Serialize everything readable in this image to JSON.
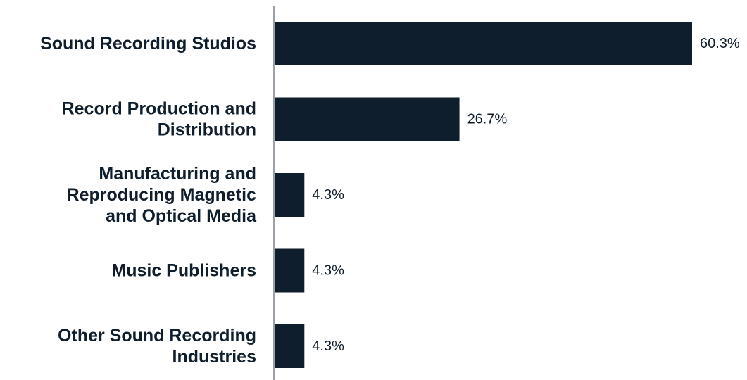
{
  "chart_data": {
    "type": "bar",
    "orientation": "horizontal",
    "categories": [
      "Sound Recording Studios",
      "Record Production and Distribution",
      "Manufacturing and Reproducing Magnetic and Optical Media",
      "Music Publishers",
      "Other Sound Recording Industries"
    ],
    "category_label_lines": [
      [
        "Sound Recording Studios"
      ],
      [
        "Record Production and",
        "Distribution"
      ],
      [
        "Manufacturing and",
        "Reproducing Magnetic",
        "and Optical Media"
      ],
      [
        "Music Publishers"
      ],
      [
        "Other Sound Recording",
        "Industries"
      ]
    ],
    "values": [
      60.3,
      26.7,
      4.3,
      4.3,
      4.3
    ],
    "value_labels": [
      "60.3%",
      "26.7%",
      "4.3%",
      "4.3%",
      "4.3%"
    ],
    "title": "",
    "xlabel": "",
    "ylabel": "",
    "xlim": [
      0,
      60.3
    ],
    "grid": false,
    "legend": "none",
    "bar_color": "#0f1e2d",
    "axis_color": "#9aa0a6",
    "text_color": "#0f1e2d"
  }
}
